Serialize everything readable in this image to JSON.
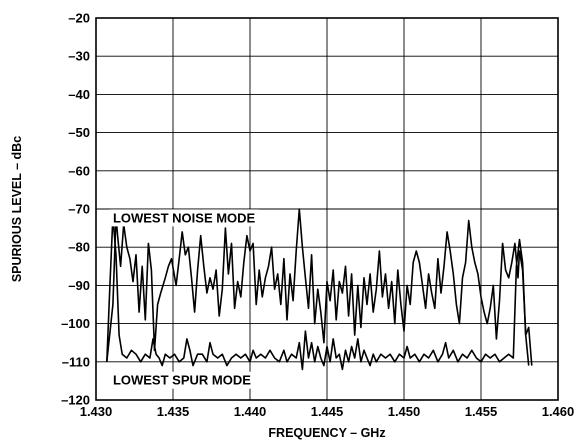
{
  "chart_data": {
    "type": "line",
    "xlabel": "FREQUENCY – GHz",
    "ylabel": "SPURIOUS LEVEL – dBc",
    "xlim": [
      1.43,
      1.46
    ],
    "ylim": [
      -120,
      -20
    ],
    "x_ticks": [
      "1.430",
      "1.435",
      "1.440",
      "1.445",
      "1.450",
      "1.455",
      "1.460"
    ],
    "y_ticks": [
      "–20",
      "–30",
      "–40",
      "–50",
      "–60",
      "–70",
      "–80",
      "–90",
      "–100",
      "–110",
      "–120"
    ],
    "grid": true,
    "annotations": [
      {
        "text": "LOWEST NOISE MODE",
        "x": 1.4311,
        "y": -73.5
      },
      {
        "text": "LOWEST SPUR MODE",
        "x": 1.4311,
        "y": -116
      }
    ],
    "series": [
      {
        "annotation": "LOWEST NOISE MODE",
        "points": [
          [
            1.4307,
            -110
          ],
          [
            1.4311,
            -95
          ],
          [
            1.4313,
            -72
          ],
          [
            1.4314,
            -77
          ],
          [
            1.4316,
            -85
          ],
          [
            1.4318,
            -74
          ],
          [
            1.432,
            -80
          ],
          [
            1.4322,
            -83
          ],
          [
            1.4324,
            -89
          ],
          [
            1.4326,
            -82
          ],
          [
            1.4328,
            -97
          ],
          [
            1.433,
            -85
          ],
          [
            1.4332,
            -99
          ],
          [
            1.4334,
            -79
          ],
          [
            1.4336,
            -86
          ],
          [
            1.4338,
            -107
          ],
          [
            1.434,
            -95
          ],
          [
            1.4342,
            -92
          ],
          [
            1.4345,
            -88
          ],
          [
            1.4347,
            -85
          ],
          [
            1.4349,
            -83
          ],
          [
            1.4352,
            -90
          ],
          [
            1.4354,
            -83
          ],
          [
            1.4356,
            -76
          ],
          [
            1.4358,
            -82
          ],
          [
            1.436,
            -80
          ],
          [
            1.4362,
            -88
          ],
          [
            1.4364,
            -97
          ],
          [
            1.4366,
            -86
          ],
          [
            1.4368,
            -77
          ],
          [
            1.437,
            -85
          ],
          [
            1.4372,
            -92
          ],
          [
            1.4374,
            -88
          ],
          [
            1.4376,
            -91
          ],
          [
            1.4378,
            -86
          ],
          [
            1.438,
            -98
          ],
          [
            1.4382,
            -91
          ],
          [
            1.4384,
            -75
          ],
          [
            1.4386,
            -87
          ],
          [
            1.4388,
            -79
          ],
          [
            1.439,
            -96
          ],
          [
            1.4392,
            -89
          ],
          [
            1.4394,
            -93
          ],
          [
            1.4396,
            -84
          ],
          [
            1.4398,
            -77
          ],
          [
            1.44,
            -81
          ],
          [
            1.4402,
            -79
          ],
          [
            1.4404,
            -95
          ],
          [
            1.4406,
            -86
          ],
          [
            1.4408,
            -93
          ],
          [
            1.441,
            -88
          ],
          [
            1.4412,
            -85
          ],
          [
            1.4414,
            -80
          ],
          [
            1.4416,
            -91
          ],
          [
            1.4418,
            -87
          ],
          [
            1.442,
            -95
          ],
          [
            1.4422,
            -83
          ],
          [
            1.4424,
            -99
          ],
          [
            1.4426,
            -87
          ],
          [
            1.4428,
            -94
          ],
          [
            1.443,
            -81
          ],
          [
            1.4432,
            -70
          ],
          [
            1.4434,
            -80
          ],
          [
            1.4436,
            -88
          ],
          [
            1.4438,
            -96
          ],
          [
            1.444,
            -82
          ],
          [
            1.4442,
            -100
          ],
          [
            1.4444,
            -91
          ],
          [
            1.4446,
            -97
          ],
          [
            1.4448,
            -105
          ],
          [
            1.445,
            -89
          ],
          [
            1.4452,
            -94
          ],
          [
            1.4454,
            -86
          ],
          [
            1.4456,
            -99
          ],
          [
            1.4458,
            -89
          ],
          [
            1.446,
            -92
          ],
          [
            1.4462,
            -85
          ],
          [
            1.4464,
            -98
          ],
          [
            1.4466,
            -87
          ],
          [
            1.4468,
            -103
          ],
          [
            1.447,
            -90
          ],
          [
            1.4472,
            -101
          ],
          [
            1.4474,
            -88
          ],
          [
            1.4476,
            -95
          ],
          [
            1.4478,
            -87
          ],
          [
            1.448,
            -97
          ],
          [
            1.4482,
            -91
          ],
          [
            1.4484,
            -81
          ],
          [
            1.4486,
            -93
          ],
          [
            1.4488,
            -87
          ],
          [
            1.449,
            -96
          ],
          [
            1.4492,
            -89
          ],
          [
            1.4494,
            -100
          ],
          [
            1.4496,
            -86
          ],
          [
            1.4498,
            -95
          ],
          [
            1.45,
            -102
          ],
          [
            1.4502,
            -90
          ],
          [
            1.4504,
            -95
          ],
          [
            1.4506,
            -84
          ],
          [
            1.4508,
            -81
          ],
          [
            1.451,
            -84
          ],
          [
            1.4512,
            -90
          ],
          [
            1.4514,
            -96
          ],
          [
            1.4516,
            -87
          ],
          [
            1.4518,
            -92
          ],
          [
            1.452,
            -96
          ],
          [
            1.4522,
            -83
          ],
          [
            1.4524,
            -92
          ],
          [
            1.4526,
            -85
          ],
          [
            1.4528,
            -76
          ],
          [
            1.453,
            -81
          ],
          [
            1.4532,
            -87
          ],
          [
            1.4534,
            -95
          ],
          [
            1.4536,
            -100
          ],
          [
            1.4538,
            -88
          ],
          [
            1.454,
            -84
          ],
          [
            1.4542,
            -73
          ],
          [
            1.4544,
            -80
          ],
          [
            1.4546,
            -84
          ],
          [
            1.4548,
            -87
          ],
          [
            1.455,
            -93
          ],
          [
            1.4552,
            -97
          ],
          [
            1.4554,
            -100
          ],
          [
            1.4556,
            -96
          ],
          [
            1.4558,
            -90
          ],
          [
            1.456,
            -104
          ],
          [
            1.4562,
            -94
          ],
          [
            1.4564,
            -79
          ],
          [
            1.4566,
            -86
          ],
          [
            1.4568,
            -88
          ],
          [
            1.457,
            -84
          ],
          [
            1.4572,
            -79
          ],
          [
            1.4574,
            -88
          ],
          [
            1.4575,
            -81
          ],
          [
            1.4577,
            -86
          ],
          [
            1.4579,
            -103
          ],
          [
            1.4581,
            -101
          ],
          [
            1.4583,
            -111
          ]
        ]
      },
      {
        "annotation": "LOWEST SPUR MODE",
        "points": [
          [
            1.4307,
            -110
          ],
          [
            1.4309,
            -90
          ],
          [
            1.4311,
            -72
          ],
          [
            1.4313,
            -82
          ],
          [
            1.4315,
            -103
          ],
          [
            1.4317,
            -108
          ],
          [
            1.432,
            -109
          ],
          [
            1.4323,
            -107
          ],
          [
            1.4326,
            -108
          ],
          [
            1.4329,
            -110
          ],
          [
            1.4332,
            -108
          ],
          [
            1.4335,
            -109
          ],
          [
            1.4337,
            -104
          ],
          [
            1.4339,
            -108
          ],
          [
            1.4341,
            -109
          ],
          [
            1.4343,
            -111
          ],
          [
            1.4345,
            -108
          ],
          [
            1.4348,
            -109
          ],
          [
            1.4351,
            -108
          ],
          [
            1.4354,
            -110
          ],
          [
            1.4357,
            -109
          ],
          [
            1.4359,
            -104
          ],
          [
            1.4361,
            -107
          ],
          [
            1.4363,
            -111
          ],
          [
            1.4366,
            -108
          ],
          [
            1.4369,
            -108
          ],
          [
            1.4372,
            -110
          ],
          [
            1.4374,
            -105
          ],
          [
            1.4376,
            -108
          ],
          [
            1.4379,
            -109
          ],
          [
            1.4382,
            -108
          ],
          [
            1.4385,
            -111
          ],
          [
            1.4388,
            -109
          ],
          [
            1.4391,
            -108
          ],
          [
            1.4394,
            -109
          ],
          [
            1.4397,
            -108
          ],
          [
            1.44,
            -110
          ],
          [
            1.4402,
            -107
          ],
          [
            1.4404,
            -109
          ],
          [
            1.4407,
            -108
          ],
          [
            1.441,
            -109
          ],
          [
            1.4413,
            -107
          ],
          [
            1.4416,
            -109
          ],
          [
            1.4419,
            -110
          ],
          [
            1.4422,
            -107
          ],
          [
            1.4424,
            -110
          ],
          [
            1.4427,
            -108
          ],
          [
            1.443,
            -109
          ],
          [
            1.4432,
            -105
          ],
          [
            1.4434,
            -112
          ],
          [
            1.4436,
            -102
          ],
          [
            1.4438,
            -109
          ],
          [
            1.444,
            -105
          ],
          [
            1.4442,
            -110
          ],
          [
            1.4444,
            -106
          ],
          [
            1.4446,
            -109
          ],
          [
            1.4448,
            -111
          ],
          [
            1.445,
            -106
          ],
          [
            1.4452,
            -110
          ],
          [
            1.4454,
            -104
          ],
          [
            1.4456,
            -109
          ],
          [
            1.4458,
            -108
          ],
          [
            1.446,
            -112
          ],
          [
            1.4462,
            -107
          ],
          [
            1.4464,
            -110
          ],
          [
            1.4466,
            -106
          ],
          [
            1.4468,
            -109
          ],
          [
            1.447,
            -104
          ],
          [
            1.4472,
            -110
          ],
          [
            1.4474,
            -107
          ],
          [
            1.4476,
            -109
          ],
          [
            1.4478,
            -111
          ],
          [
            1.448,
            -108
          ],
          [
            1.4482,
            -110
          ],
          [
            1.4485,
            -108
          ],
          [
            1.4488,
            -109
          ],
          [
            1.4491,
            -108
          ],
          [
            1.4494,
            -110
          ],
          [
            1.4497,
            -108
          ],
          [
            1.45,
            -109
          ],
          [
            1.4502,
            -106
          ],
          [
            1.4504,
            -109
          ],
          [
            1.4507,
            -108
          ],
          [
            1.451,
            -110
          ],
          [
            1.4513,
            -108
          ],
          [
            1.4516,
            -109
          ],
          [
            1.4519,
            -107
          ],
          [
            1.4522,
            -110
          ],
          [
            1.4525,
            -108
          ],
          [
            1.4527,
            -105
          ],
          [
            1.4529,
            -109
          ],
          [
            1.4532,
            -107
          ],
          [
            1.4535,
            -110
          ],
          [
            1.4538,
            -108
          ],
          [
            1.4541,
            -109
          ],
          [
            1.4544,
            -107
          ],
          [
            1.4547,
            -109
          ],
          [
            1.455,
            -110
          ],
          [
            1.4553,
            -108
          ],
          [
            1.4556,
            -109
          ],
          [
            1.4559,
            -108
          ],
          [
            1.4562,
            -110
          ],
          [
            1.4565,
            -109
          ],
          [
            1.4568,
            -108
          ],
          [
            1.4571,
            -109
          ],
          [
            1.4573,
            -85
          ],
          [
            1.4575,
            -78
          ],
          [
            1.4577,
            -84
          ],
          [
            1.4579,
            -103
          ],
          [
            1.4581,
            -111
          ]
        ]
      }
    ]
  }
}
